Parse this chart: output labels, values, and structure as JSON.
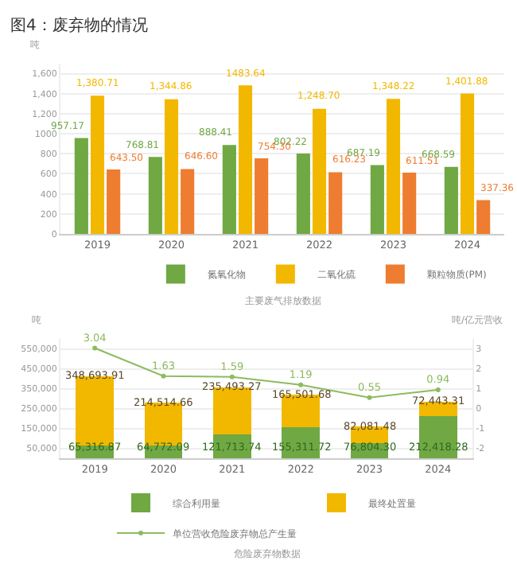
{
  "chart_data": [
    {
      "type": "bar",
      "title": "图4：废弃物的情况",
      "ylabel": "吨",
      "xlabel": "主要废气排放数据",
      "categories": [
        "2019",
        "2020",
        "2021",
        "2022",
        "2023",
        "2024"
      ],
      "series": [
        {
          "name": "氮氧化物",
          "color": "#70a844",
          "values": [
            957.17,
            768.81,
            888.41,
            802.22,
            687.19,
            668.59
          ],
          "value_labels": [
            "957.17",
            "768.81",
            "888.41",
            "802.22",
            "687.19",
            "668.59"
          ]
        },
        {
          "name": "二氧化硫",
          "color": "#f2b800",
          "values": [
            1380.71,
            1344.86,
            1483.64,
            1248.7,
            1348.22,
            1401.88
          ],
          "value_labels": [
            "1,380.71",
            "1,344.86",
            "1483.64",
            "1,248.70",
            "1,348.22",
            "1,401.88"
          ]
        },
        {
          "name": "颗粒物质(PM)",
          "color": "#ee7d31",
          "values": [
            643.5,
            646.6,
            754.3,
            616.23,
            611.51,
            337.36
          ],
          "value_labels": [
            "643.50",
            "646.60",
            "754.30",
            "616.23",
            "611.51",
            "337.36"
          ]
        }
      ],
      "ylim": [
        0,
        1700
      ],
      "yticks": [
        0,
        200,
        400,
        600,
        800,
        {
          "value": 1000,
          "label": "1000"
        },
        {
          "value": 1200,
          "label": "1,200"
        },
        {
          "value": 1400,
          "label": "1,400"
        },
        {
          "value": 1600,
          "label": "1,600"
        }
      ],
      "grid": "y",
      "legend": "bottom right"
    },
    {
      "type": "bar",
      "stacked": true,
      "ylabel": "吨",
      "y2label": "吨/亿元营收",
      "xlabel": "危险废弃物数据",
      "categories": [
        "2019",
        "2020",
        "2021",
        "2022",
        "2023",
        "2024"
      ],
      "series": [
        {
          "name": "综合利用量",
          "color": "#70a844",
          "values": [
            65316.87,
            64772.09,
            121713.74,
            155311.72,
            76804.3,
            212418.28
          ],
          "value_labels": [
            "65,316.87",
            "64,772.09",
            "121,713.74",
            "155,311.72",
            "76,804.30",
            "212,418.28"
          ]
        },
        {
          "name": "最终处置量",
          "color": "#f2b800",
          "values": [
            348693.91,
            214514.66,
            235493.27,
            165501.68,
            82081.48,
            72443.31
          ],
          "value_labels": [
            "348,693.91",
            "214,514.66",
            "235,493.27",
            "165,501.68",
            "82,081.48",
            "72,443.31"
          ]
        },
        {
          "name": "单位营收危险废弃物总产生量",
          "type": "line",
          "axis": "y2",
          "color": "#8dbb5f",
          "marker": "circle",
          "values": [
            3.04,
            1.63,
            1.59,
            1.19,
            0.55,
            0.94
          ],
          "value_labels": [
            "3.04",
            "1.63",
            "1.59",
            "1.19",
            "0.55",
            "0.94"
          ]
        }
      ],
      "ylim": [
        0,
        600000
      ],
      "yticks": [
        {
          "value": 50000,
          "label": "50,000"
        },
        {
          "value": 150000,
          "label": "150,000"
        },
        {
          "value": 250000,
          "label": "250,000"
        },
        {
          "value": 350000,
          "label": "350,000"
        },
        {
          "value": 450000,
          "label": "450,000"
        },
        {
          "value": 550000,
          "label": "550,000"
        }
      ],
      "y2lim": [
        -2.5,
        3.5
      ],
      "y2ticks": [
        -2,
        -1,
        0,
        1,
        2,
        3
      ],
      "grid": "y",
      "legend": "bottom"
    }
  ]
}
